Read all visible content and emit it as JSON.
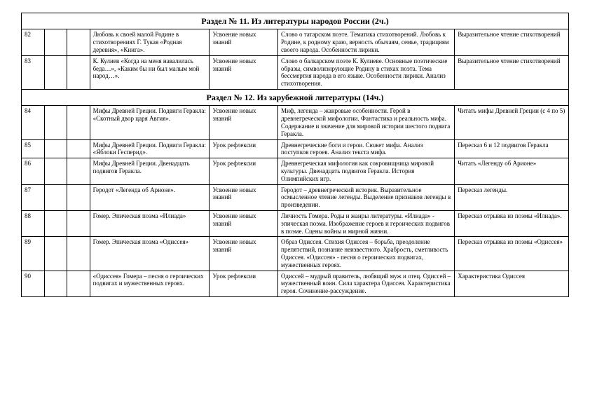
{
  "sections": [
    {
      "title": "Раздел № 11. Из литературы народов России (2ч.)",
      "rows": [
        {
          "n": "82",
          "topic": "Любовь к своей малой Родине в стихотворениях Г. Тукая «Родная деревня», «Книга».",
          "type": "Усвоение новых знаний",
          "content": "Слово о татарском поэте. Тематика стихотворений. Любовь к Родине, к родному краю, верность обычаям, семье, традициям своего народа. Особенности лирики.",
          "hw": "Выразительное чтение стихотворений"
        },
        {
          "n": "83",
          "topic": "К. Кулиев «Когда на меня навалилась беда…», «Каким бы ни был малым мой народ…».",
          "type": "Усвоение новых знаний",
          "content": "Слово о балкарском поэте К. Кулиеве. Основные поэтические образы, символизирующие Родину в стихах поэта. Тема бессмертия народа в его языке. Особенности лирики. Анализ стихотворения.",
          "hw": "Выразительное чтение стихотворений"
        }
      ]
    },
    {
      "title": "Раздел № 12. Из зарубежной литературы (14ч.)",
      "rows": [
        {
          "n": "84",
          "topic": "Мифы Древней Греции. Подвиги Геракла: «Скотный двор царя Авгия».",
          "type": "Усвоение новых знаний",
          "content": "Миф, легенда – жанровые особенности. Герой в древнегреческой мифологии. Фантастика и реальность мифа. Содержание и значение для мировой истории шестого подвига Геракла.",
          "hw": "Читать мифы Древней Греции (с 4 по 5)"
        },
        {
          "n": "85",
          "topic": "Мифы Древней Греции. Подвиги Геракла: «Яблоки Гесперид».",
          "type": "Урок рефлексии",
          "content": "Древнегреческие боги и герои. Сюжет мифа. Анализ поступков героев. Анализ текста мифа.",
          "hw": "Пересказ 6 и 12 подвигов Геракла"
        },
        {
          "n": "86",
          "topic": "Мифы Древней Греции. Двенадцать подвигов Геракла.",
          "type": "Урок рефлексии",
          "content": "Древнегреческая мифология как сокровищница мировой культуры. Двенадцать подвигов Геракла. История Олимпийских игр.",
          "hw": "Читать «Легенду об Арионе»"
        },
        {
          "n": "87",
          "topic": "Геродот «Легенда об Арионе».",
          "type": "Усвоение новых знаний",
          "content": "Геродот – древнегреческий историк. Выразительное осмысленное чтение легенды. Выделение признаков легенды в произведении.",
          "hw": "Пересказ легенды."
        },
        {
          "n": "88",
          "topic": "Гомер. Эпическая поэма «Илиада»",
          "type": "Усвоение новых знаний",
          "content": "Личность Гомера. Роды и жанры литературы. «Илиада» - эпическая поэма. Изображение героев и героических подвигов в поэме. Сцены войны и мирной жизни.",
          "hw": "Пересказ отрывка из поэмы «Илиада»."
        },
        {
          "n": "89",
          "topic": "Гомер. Эпическая поэма «Одиссея»",
          "type": "Усвоение новых знаний",
          "content": "Образ Одиссея. Стихия Одиссея – борьба, преодоление препятствий, познание неизвестного. Храбрость, сметливость Одиссея. «Одиссея» - песня о героических подвигах, мужественных героях.",
          "hw": "Пересказ отрывка из поэмы «Одиссея»"
        },
        {
          "n": "90",
          "topic": "«Одиссея» Гомера – песня о героических подвигах и мужественных героях.",
          "type": "Урок рефлексии",
          "content": "Одиссей – мудрый правитель, любящий муж и отец. Одиссей – мужественный воин. Сила характера Одиссея. Характеристика героя. Сочинение-рассуждение.",
          "hw": "Характеристика Одиссея"
        }
      ]
    }
  ]
}
